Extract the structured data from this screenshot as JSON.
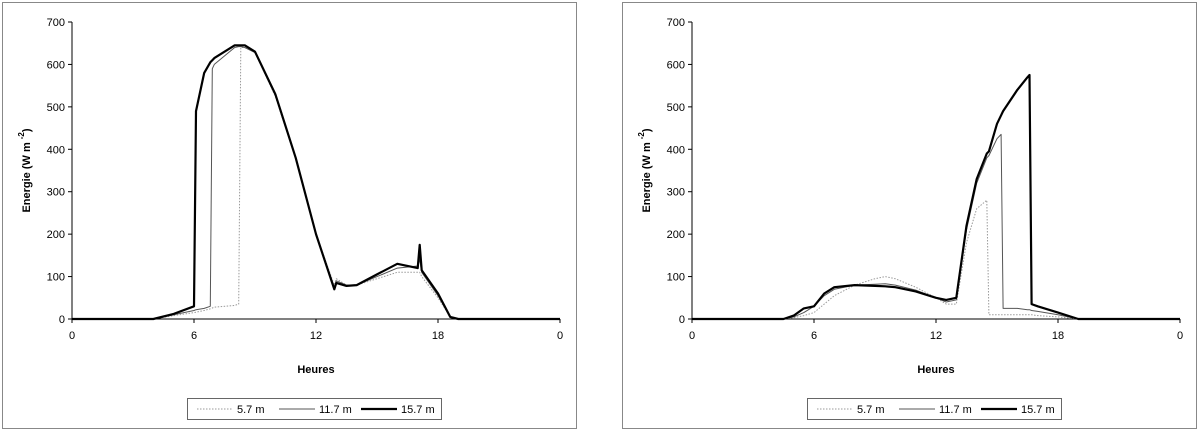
{
  "chart_data": [
    {
      "type": "line",
      "xlabel": "Heures",
      "ylabel": "Energie (W m",
      "ylabel_superscript": "-2",
      "ylabel_end": ")",
      "xlim": [
        0,
        24
      ],
      "xticks": [
        0,
        6,
        12,
        18,
        {
          "value": 24,
          "label": "0"
        }
      ],
      "ylim": [
        0,
        700
      ],
      "yticks": [
        0,
        100,
        200,
        300,
        400,
        500,
        600,
        700
      ],
      "x": [
        0,
        4,
        5,
        6,
        6.1,
        6.5,
        6.8,
        6.9,
        7,
        8,
        8.2,
        8.3,
        8.5,
        9,
        10,
        11,
        12,
        12.9,
        13,
        13.5,
        14,
        15,
        16,
        17,
        17.1,
        17.2,
        18,
        18.6,
        19,
        24
      ],
      "series": [
        {
          "name": "5.7 m",
          "color": "#9a9a9a",
          "line_style": "dotted",
          "values": [
            0,
            0,
            8,
            15,
            16,
            20,
            24,
            26,
            28,
            32,
            35,
            640,
            640,
            628,
            525,
            378,
            200,
            80,
            95,
            80,
            80,
            95,
            110,
            110,
            110,
            100,
            50,
            5,
            0,
            0
          ]
        },
        {
          "name": "11.7 m",
          "color": "#555555",
          "line_style": "thin",
          "values": [
            0,
            0,
            10,
            20,
            22,
            25,
            30,
            590,
            600,
            640,
            642,
            642,
            640,
            628,
            528,
            380,
            200,
            75,
            90,
            80,
            80,
            100,
            120,
            125,
            140,
            110,
            55,
            5,
            0,
            0
          ]
        },
        {
          "name": "15.7 m",
          "color": "#000000",
          "line_style": "thick",
          "values": [
            0,
            0,
            12,
            30,
            490,
            580,
            605,
            610,
            615,
            645,
            645,
            645,
            645,
            630,
            530,
            380,
            200,
            70,
            85,
            78,
            80,
            105,
            130,
            120,
            175,
            115,
            60,
            5,
            0,
            0
          ]
        }
      ]
    },
    {
      "type": "line",
      "xlabel": "Heures",
      "ylabel": "Energie (W m",
      "ylabel_superscript": "-2",
      "ylabel_end": ")",
      "xlim": [
        0,
        24
      ],
      "xticks": [
        0,
        6,
        12,
        18,
        {
          "value": 24,
          "label": "0"
        }
      ],
      "ylim": [
        0,
        700
      ],
      "yticks": [
        0,
        100,
        200,
        300,
        400,
        500,
        600,
        700
      ],
      "x": [
        0,
        4.5,
        5,
        5.5,
        6,
        6.5,
        7,
        8,
        9,
        9.5,
        10,
        11,
        12,
        12.5,
        13,
        13.5,
        14,
        14.5,
        14.6,
        15,
        15.2,
        15.3,
        16,
        16.5,
        16.6,
        16.7,
        17,
        18,
        19,
        24
      ],
      "series": [
        {
          "name": "5.7 m",
          "color": "#9a9a9a",
          "line_style": "dotted",
          "values": [
            0,
            0,
            3,
            8,
            15,
            35,
            55,
            80,
            95,
            100,
            95,
            75,
            50,
            35,
            35,
            180,
            260,
            280,
            10,
            10,
            10,
            10,
            10,
            10,
            10,
            10,
            8,
            5,
            0,
            0
          ]
        },
        {
          "name": "11.7 m",
          "color": "#555555",
          "line_style": "thin",
          "values": [
            0,
            0,
            5,
            15,
            30,
            55,
            70,
            80,
            82,
            83,
            80,
            68,
            50,
            40,
            45,
            210,
            320,
            380,
            385,
            425,
            435,
            25,
            25,
            22,
            22,
            20,
            18,
            10,
            0,
            0
          ]
        },
        {
          "name": "15.7 m",
          "color": "#000000",
          "line_style": "thick",
          "values": [
            0,
            0,
            8,
            25,
            30,
            60,
            75,
            80,
            78,
            77,
            75,
            65,
            50,
            45,
            50,
            220,
            330,
            390,
            395,
            460,
            480,
            490,
            540,
            570,
            575,
            35,
            30,
            15,
            0,
            0
          ]
        }
      ]
    }
  ]
}
